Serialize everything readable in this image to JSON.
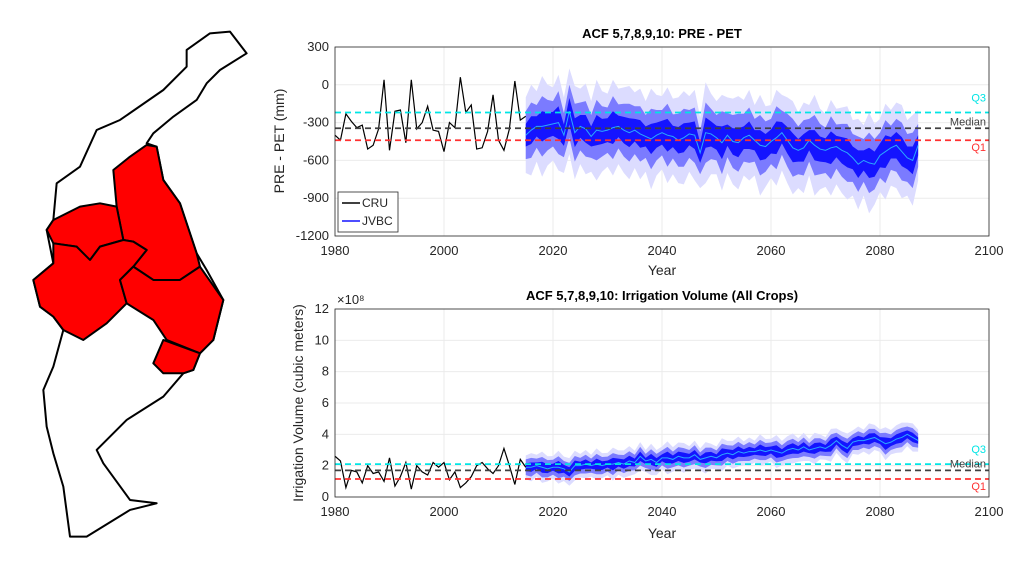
{
  "colors": {
    "region_fill": "#ff0000",
    "outline": "#000000",
    "outer_band": "#dcdcff",
    "mid_band": "#7b7bff",
    "inner_band": "#1414ff",
    "jvbc_median": "#2aa8ff",
    "cru": "#000000",
    "q3": "#00e5e5",
    "median": "#404040",
    "q1": "#ff3030"
  },
  "chart_data": [
    {
      "type": "line",
      "title": "ACF 5,7,8,9,10: PRE - PET",
      "xlabel": "Year",
      "ylabel": "PRE - PET (mm)",
      "xlim": [
        1980,
        2100
      ],
      "ylim": [
        -1200,
        300
      ],
      "xticks": [
        1980,
        2000,
        2020,
        2040,
        2060,
        2080,
        2100
      ],
      "yticks": [
        -1200,
        -900,
        -600,
        -300,
        0,
        300
      ],
      "grid": true,
      "legend": {
        "placement": "bottom-left",
        "entries": [
          "CRU",
          "JVBC"
        ]
      },
      "reference_lines": [
        {
          "label": "Q3",
          "value": -220,
          "color_key": "q3"
        },
        {
          "label": "Median",
          "value": -345,
          "color_key": "median"
        },
        {
          "label": "Q1",
          "value": -440,
          "color_key": "q1"
        }
      ],
      "cru": {
        "name": "CRU",
        "x_start": 1980,
        "values": [
          -400,
          -440,
          -230,
          -290,
          -340,
          -320,
          -510,
          -480,
          -350,
          40,
          -520,
          -210,
          -200,
          -460,
          40,
          -350,
          -300,
          -170,
          -360,
          -370,
          -530,
          -300,
          -340,
          60,
          -220,
          -160,
          -510,
          -500,
          -370,
          -80,
          -440,
          -520,
          -350,
          30,
          -280,
          -250
        ]
      },
      "jvbc": {
        "name": "JVBC",
        "x_start": 2015,
        "median": [
          -400,
          -360,
          -330,
          -330,
          -320,
          -310,
          -300,
          -400,
          -210,
          -380,
          -330,
          -350,
          -410,
          -360,
          -370,
          -360,
          -340,
          -330,
          -360,
          -380,
          -360,
          -390,
          -410,
          -430,
          -400,
          -380,
          -400,
          -410,
          -440,
          -420,
          -390,
          -400,
          -540,
          -380,
          -390,
          -420,
          -460,
          -400,
          -450,
          -460,
          -420,
          -400,
          -440,
          -480,
          -490,
          -450,
          -420,
          -380,
          -440,
          -500,
          -520,
          -500,
          -440,
          -480,
          -510,
          -520,
          -500,
          -490,
          -520,
          -540,
          -580,
          -630,
          -600,
          -620,
          -630,
          -560,
          -530,
          -500,
          -480,
          -530,
          -580,
          -600,
          -480
        ],
        "inner_halfwidth": [
          90,
          110,
          80,
          120,
          100,
          95,
          130,
          85,
          105,
          115,
          90,
          110,
          80,
          120,
          100,
          95,
          130,
          85,
          105,
          115,
          90,
          110,
          80,
          120,
          100,
          95,
          130,
          85,
          105,
          115,
          90,
          110,
          80,
          120,
          100,
          95,
          130,
          85,
          105,
          115,
          90,
          110,
          80,
          120,
          100,
          95,
          130,
          85,
          105,
          115,
          90,
          110,
          80,
          120,
          100,
          95,
          130,
          85,
          105,
          115,
          90,
          110,
          80,
          120,
          100,
          95,
          130,
          85,
          105,
          115,
          90,
          110,
          80
        ],
        "mid_halfwidth": [
          190,
          220,
          170,
          240,
          200,
          180,
          250,
          175,
          210,
          230,
          190,
          220,
          170,
          240,
          200,
          180,
          250,
          175,
          210,
          230,
          190,
          220,
          170,
          240,
          200,
          180,
          250,
          175,
          210,
          230,
          190,
          220,
          170,
          240,
          200,
          180,
          250,
          175,
          210,
          230,
          190,
          220,
          170,
          240,
          200,
          180,
          250,
          175,
          210,
          230,
          190,
          220,
          170,
          240,
          200,
          180,
          250,
          175,
          210,
          230,
          190,
          220,
          170,
          240,
          200,
          180,
          250,
          175,
          210,
          230,
          190,
          220,
          170
        ],
        "outer_halfwidth": [
          300,
          360,
          280,
          400,
          320,
          290,
          380,
          300,
          340,
          370,
          300,
          360,
          280,
          400,
          320,
          290,
          380,
          300,
          340,
          370,
          300,
          360,
          280,
          400,
          320,
          290,
          380,
          300,
          340,
          370,
          300,
          360,
          280,
          400,
          320,
          290,
          380,
          300,
          340,
          370,
          300,
          360,
          280,
          400,
          320,
          290,
          380,
          300,
          340,
          370,
          300,
          360,
          280,
          400,
          320,
          290,
          380,
          300,
          340,
          370,
          300,
          360,
          280,
          400,
          320,
          290,
          380,
          300,
          340,
          370,
          300,
          360,
          280
        ]
      }
    },
    {
      "type": "line",
      "title": "ACF 5,7,8,9,10: Irrigation Volume (All Crops)",
      "xlabel": "Year",
      "ylabel": "Irrigation Volume (cubic meters)",
      "yscale_label": "×10⁸",
      "xlim": [
        1980,
        2100
      ],
      "ylim": [
        0,
        12
      ],
      "xticks": [
        1980,
        2000,
        2020,
        2040,
        2060,
        2080,
        2100
      ],
      "yticks": [
        0,
        2,
        4,
        6,
        8,
        10,
        12
      ],
      "grid": true,
      "reference_lines": [
        {
          "label": "Q3",
          "value": 2.1,
          "color_key": "q3"
        },
        {
          "label": "Median",
          "value": 1.7,
          "color_key": "median"
        },
        {
          "label": "Q1",
          "value": 1.15,
          "color_key": "q1"
        }
      ],
      "cru": {
        "name": "CRU",
        "x_start": 1980,
        "values": [
          2.6,
          2.3,
          0.6,
          1.7,
          1.6,
          0.9,
          2.0,
          1.5,
          1.6,
          1.0,
          2.5,
          0.7,
          1.3,
          2.2,
          0.5,
          2.0,
          1.6,
          1.4,
          2.2,
          1.9,
          2.2,
          1.1,
          1.6,
          0.6,
          0.9,
          1.3,
          2.0,
          2.2,
          1.8,
          1.5,
          2.0,
          3.1,
          2.0,
          0.8,
          2.4,
          1.9
        ]
      },
      "jvbc": {
        "name": "JVBC",
        "x_start": 2015,
        "median": [
          1.9,
          1.9,
          2.0,
          1.9,
          1.8,
          1.9,
          1.9,
          1.8,
          1.6,
          2.0,
          2.0,
          2.1,
          2.0,
          2.1,
          2.0,
          2.1,
          2.1,
          2.2,
          2.1,
          2.3,
          2.2,
          2.6,
          2.3,
          2.4,
          2.2,
          2.5,
          2.5,
          2.4,
          2.6,
          2.5,
          2.5,
          2.7,
          2.4,
          2.5,
          2.6,
          2.5,
          2.7,
          2.8,
          2.7,
          2.9,
          2.8,
          2.9,
          2.9,
          3.0,
          2.9,
          3.0,
          2.9,
          2.8,
          3.0,
          3.1,
          3.0,
          3.2,
          3.0,
          3.1,
          3.2,
          3.1,
          3.3,
          3.6,
          3.3,
          3.1,
          3.5,
          3.6,
          3.6,
          3.7,
          3.8,
          3.6,
          3.4,
          3.5,
          3.7,
          3.8,
          4.0,
          3.8,
          3.6
        ],
        "inner_halfwidth": [
          0.25,
          0.3,
          0.2,
          0.35,
          0.28,
          0.22,
          0.4,
          0.25,
          0.3,
          0.33,
          0.25,
          0.3,
          0.2,
          0.35,
          0.28,
          0.22,
          0.4,
          0.25,
          0.3,
          0.33,
          0.25,
          0.3,
          0.2,
          0.35,
          0.28,
          0.22,
          0.4,
          0.25,
          0.3,
          0.33,
          0.25,
          0.3,
          0.2,
          0.35,
          0.28,
          0.22,
          0.4,
          0.25,
          0.3,
          0.33,
          0.25,
          0.3,
          0.2,
          0.35,
          0.28,
          0.22,
          0.4,
          0.25,
          0.3,
          0.33,
          0.25,
          0.3,
          0.2,
          0.35,
          0.28,
          0.22,
          0.4,
          0.25,
          0.3,
          0.33,
          0.25,
          0.3,
          0.2,
          0.35,
          0.28,
          0.22,
          0.4,
          0.25,
          0.3,
          0.33,
          0.25,
          0.3,
          0.2
        ],
        "mid_halfwidth": [
          0.5,
          0.6,
          0.45,
          0.65,
          0.55,
          0.48,
          0.7,
          0.5,
          0.58,
          0.62,
          0.5,
          0.6,
          0.45,
          0.65,
          0.55,
          0.48,
          0.7,
          0.5,
          0.58,
          0.62,
          0.5,
          0.6,
          0.45,
          0.65,
          0.55,
          0.48,
          0.7,
          0.5,
          0.58,
          0.62,
          0.5,
          0.6,
          0.45,
          0.65,
          0.55,
          0.48,
          0.7,
          0.5,
          0.58,
          0.62,
          0.5,
          0.6,
          0.45,
          0.65,
          0.55,
          0.48,
          0.7,
          0.5,
          0.58,
          0.62,
          0.5,
          0.6,
          0.45,
          0.65,
          0.55,
          0.48,
          0.7,
          0.5,
          0.58,
          0.62,
          0.5,
          0.6,
          0.45,
          0.65,
          0.55,
          0.48,
          0.7,
          0.5,
          0.58,
          0.62,
          0.5,
          0.6,
          0.45
        ],
        "outer_halfwidth": [
          0.75,
          0.9,
          0.7,
          1.0,
          0.8,
          0.72,
          1.05,
          0.78,
          0.88,
          0.95,
          0.75,
          0.9,
          0.7,
          1.0,
          0.8,
          0.72,
          1.05,
          0.78,
          0.88,
          0.95,
          0.75,
          0.9,
          0.7,
          1.0,
          0.8,
          0.72,
          1.05,
          0.78,
          0.88,
          0.95,
          0.75,
          0.9,
          0.7,
          1.0,
          0.8,
          0.72,
          1.05,
          0.78,
          0.88,
          0.95,
          0.75,
          0.9,
          0.7,
          1.0,
          0.8,
          0.72,
          1.05,
          0.78,
          0.88,
          0.95,
          0.75,
          0.9,
          0.7,
          1.0,
          0.8,
          0.72,
          1.05,
          0.78,
          0.88,
          0.95,
          0.75,
          0.9,
          0.7,
          1.0,
          0.8,
          0.72,
          1.05,
          0.78,
          0.88,
          0.95,
          0.75,
          0.9,
          0.7
        ]
      }
    }
  ]
}
